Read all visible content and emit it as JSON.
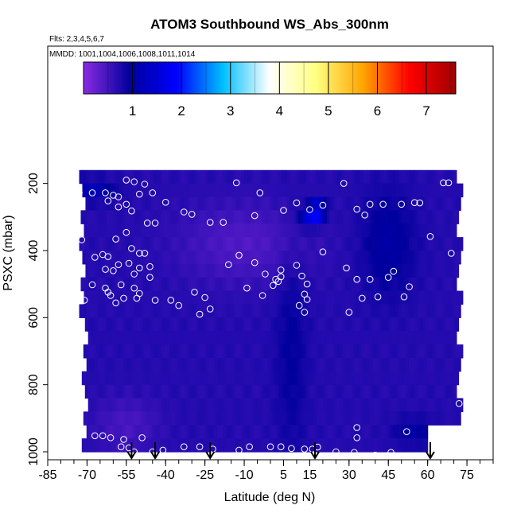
{
  "chart_data": {
    "type": "heatmap",
    "title": "ATOM3 Southbound WS_Abs_300nm",
    "annotations": [
      "Flts: 2,3,4,5,6,7",
      "MMDD: 1001,1004,1006,1008,1011,1014"
    ],
    "xlabel": "Latitude (deg N)",
    "ylabel": "PSXC (mbar)",
    "xlim": [
      -85,
      85
    ],
    "ylim": [
      1000,
      0
    ],
    "x_ticks": [
      -85,
      -70,
      -55,
      -40,
      -25,
      -10,
      5,
      15,
      30,
      45,
      60,
      75
    ],
    "x_tick_labels": [
      "-85",
      "-70",
      "-55",
      "-40",
      "-25",
      "-10",
      "5",
      "15",
      "30",
      "45",
      "60",
      "75"
    ],
    "y_ticks": [
      200,
      400,
      600,
      800,
      1000
    ],
    "y_tick_labels": [
      "200",
      "400",
      "600",
      "800",
      "1000"
    ],
    "colorbar": {
      "range": [
        0,
        7.6
      ],
      "ticks": [
        1,
        2,
        3,
        4,
        5,
        6,
        7
      ],
      "tick_labels": [
        "1",
        "2",
        "3",
        "4",
        "5",
        "6",
        "7"
      ],
      "colors": [
        "#8a2be2",
        "#00009c",
        "#0000ff",
        "#00bfff",
        "#ffffff",
        "#ffff80",
        "#ffa500",
        "#ff0000",
        "#a00000"
      ]
    },
    "field": {
      "lat_range": [
        -73,
        71
      ],
      "pressure_levels": [
        180,
        220,
        260,
        300,
        340,
        380,
        420,
        460,
        500,
        540,
        580,
        620,
        660,
        700,
        740,
        780,
        820,
        860,
        900,
        940,
        980
      ],
      "background_value": 0.7,
      "features": [
        {
          "lat": -10,
          "p": 380,
          "w_lat": 25,
          "w_p": 120,
          "value": -0.3
        },
        {
          "lat": -55,
          "p": 920,
          "w_lat": 12,
          "w_p": 80,
          "value": -0.25
        },
        {
          "lat": 8,
          "p": 700,
          "w_lat": 6,
          "w_p": 300,
          "value": 0.25
        },
        {
          "lat": 45,
          "p": 380,
          "w_lat": 10,
          "w_p": 150,
          "value": 0.35
        },
        {
          "lat": 55,
          "p": 940,
          "w_lat": 8,
          "w_p": 40,
          "value": 0.3
        },
        {
          "lat": -68,
          "p": 220,
          "w_lat": 8,
          "w_p": 30,
          "value": 0.5
        },
        {
          "lat": 18,
          "p": 280,
          "w_lat": 3,
          "w_p": 20,
          "value": 1.8
        },
        {
          "lat": 15,
          "p": 300,
          "w_lat": 4,
          "w_p": 30,
          "value": 0.8
        }
      ]
    },
    "sample_points": [
      {
        "lat": -73,
        "p": 228
      },
      {
        "lat": -68,
        "p": 228
      },
      {
        "lat": -63,
        "p": 228
      },
      {
        "lat": -60,
        "p": 235
      },
      {
        "lat": -58,
        "p": 240
      },
      {
        "lat": -55,
        "p": 190
      },
      {
        "lat": -52,
        "p": 195
      },
      {
        "lat": -48,
        "p": 202
      },
      {
        "lat": -45,
        "p": 228
      },
      {
        "lat": -50,
        "p": 232
      },
      {
        "lat": -62,
        "p": 252
      },
      {
        "lat": -55,
        "p": 262
      },
      {
        "lat": -58,
        "p": 270
      },
      {
        "lat": -53,
        "p": 282
      },
      {
        "lat": -47,
        "p": 318
      },
      {
        "lat": -44,
        "p": 318
      },
      {
        "lat": -40,
        "p": 256
      },
      {
        "lat": -33,
        "p": 285
      },
      {
        "lat": -30,
        "p": 292
      },
      {
        "lat": -23,
        "p": 316
      },
      {
        "lat": -18,
        "p": 316
      },
      {
        "lat": -13,
        "p": 198
      },
      {
        "lat": -4,
        "p": 228
      },
      {
        "lat": -6,
        "p": 296
      },
      {
        "lat": 5,
        "p": 280
      },
      {
        "lat": 10,
        "p": 258
      },
      {
        "lat": 15,
        "p": 278
      },
      {
        "lat": 20,
        "p": 265
      },
      {
        "lat": 28,
        "p": 200
      },
      {
        "lat": 33,
        "p": 277
      },
      {
        "lat": 36,
        "p": 294
      },
      {
        "lat": 38,
        "p": 262
      },
      {
        "lat": 43,
        "p": 262
      },
      {
        "lat": 50,
        "p": 262
      },
      {
        "lat": 55,
        "p": 257
      },
      {
        "lat": 57,
        "p": 258
      },
      {
        "lat": 61,
        "p": 358
      },
      {
        "lat": 66,
        "p": 198
      },
      {
        "lat": 68,
        "p": 198
      },
      {
        "lat": -72,
        "p": 368
      },
      {
        "lat": -59,
        "p": 366
      },
      {
        "lat": -55,
        "p": 346
      },
      {
        "lat": -53,
        "p": 394
      },
      {
        "lat": -50,
        "p": 408
      },
      {
        "lat": -48,
        "p": 408
      },
      {
        "lat": -54,
        "p": 438
      },
      {
        "lat": -58,
        "p": 442
      },
      {
        "lat": -62,
        "p": 418
      },
      {
        "lat": -64,
        "p": 412
      },
      {
        "lat": -67,
        "p": 420
      },
      {
        "lat": -63,
        "p": 456
      },
      {
        "lat": -60,
        "p": 460
      },
      {
        "lat": -52,
        "p": 470
      },
      {
        "lat": -50,
        "p": 452
      },
      {
        "lat": -46,
        "p": 448
      },
      {
        "lat": -46,
        "p": 480
      },
      {
        "lat": -68,
        "p": 502
      },
      {
        "lat": -63,
        "p": 512
      },
      {
        "lat": -62,
        "p": 524
      },
      {
        "lat": -61,
        "p": 534
      },
      {
        "lat": -57,
        "p": 502
      },
      {
        "lat": -52,
        "p": 512
      },
      {
        "lat": -50,
        "p": 528
      },
      {
        "lat": -51,
        "p": 542
      },
      {
        "lat": -56,
        "p": 542
      },
      {
        "lat": -59,
        "p": 556
      },
      {
        "lat": -71,
        "p": 548
      },
      {
        "lat": -44,
        "p": 548
      },
      {
        "lat": -38,
        "p": 548
      },
      {
        "lat": -29,
        "p": 524
      },
      {
        "lat": -25,
        "p": 540
      },
      {
        "lat": -23,
        "p": 574
      },
      {
        "lat": -27,
        "p": 590
      },
      {
        "lat": -35,
        "p": 564
      },
      {
        "lat": -16,
        "p": 442
      },
      {
        "lat": -12,
        "p": 414
      },
      {
        "lat": -6,
        "p": 436
      },
      {
        "lat": -2,
        "p": 470
      },
      {
        "lat": 2,
        "p": 486
      },
      {
        "lat": 3,
        "p": 492
      },
      {
        "lat": 4,
        "p": 478
      },
      {
        "lat": 4,
        "p": 458
      },
      {
        "lat": 1,
        "p": 504
      },
      {
        "lat": -9,
        "p": 512
      },
      {
        "lat": -3,
        "p": 534
      },
      {
        "lat": 12,
        "p": 476
      },
      {
        "lat": 10,
        "p": 444
      },
      {
        "lat": 20,
        "p": 404
      },
      {
        "lat": 14,
        "p": 500
      },
      {
        "lat": 13,
        "p": 530
      },
      {
        "lat": 14,
        "p": 546
      },
      {
        "lat": 11,
        "p": 564
      },
      {
        "lat": 13,
        "p": 584
      },
      {
        "lat": 29,
        "p": 452
      },
      {
        "lat": 33,
        "p": 486
      },
      {
        "lat": 35,
        "p": 542
      },
      {
        "lat": 38,
        "p": 486
      },
      {
        "lat": 41,
        "p": 538
      },
      {
        "lat": 45,
        "p": 480
      },
      {
        "lat": 47,
        "p": 462
      },
      {
        "lat": 51,
        "p": 538
      },
      {
        "lat": 53,
        "p": 508
      },
      {
        "lat": 30,
        "p": 584
      },
      {
        "lat": 69,
        "p": 408
      },
      {
        "lat": 72,
        "p": 856
      },
      {
        "lat": -73,
        "p": 870
      },
      {
        "lat": 33,
        "p": 928
      },
      {
        "lat": 33,
        "p": 958
      },
      {
        "lat": 52,
        "p": 940
      },
      {
        "lat": -67,
        "p": 952
      },
      {
        "lat": -64,
        "p": 952
      },
      {
        "lat": -61,
        "p": 958
      },
      {
        "lat": -56,
        "p": 963
      },
      {
        "lat": -57,
        "p": 985
      },
      {
        "lat": -54,
        "p": 988
      },
      {
        "lat": -52,
        "p": 1000
      },
      {
        "lat": -49,
        "p": 958
      },
      {
        "lat": -45,
        "p": 1000
      },
      {
        "lat": -41,
        "p": 995
      },
      {
        "lat": -33,
        "p": 985
      },
      {
        "lat": -27,
        "p": 985
      },
      {
        "lat": -22,
        "p": 992
      },
      {
        "lat": -12,
        "p": 995
      },
      {
        "lat": -8,
        "p": 985
      },
      {
        "lat": 0,
        "p": 985
      },
      {
        "lat": 4,
        "p": 985
      },
      {
        "lat": 8,
        "p": 990
      },
      {
        "lat": 13,
        "p": 992
      },
      {
        "lat": 16,
        "p": 992
      },
      {
        "lat": 18,
        "p": 986
      },
      {
        "lat": 25,
        "p": 1000
      },
      {
        "lat": 32,
        "p": 1002
      },
      {
        "lat": 40,
        "p": 1010
      },
      {
        "lat": 46,
        "p": 1002
      }
    ],
    "arrows_lat": [
      -53,
      -44,
      -23,
      17,
      61
    ]
  }
}
